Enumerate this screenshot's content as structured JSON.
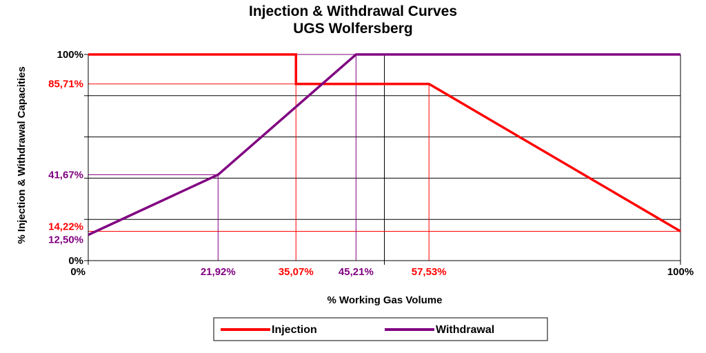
{
  "chart_data": {
    "type": "line",
    "title": "Injection & Withdrawal Curves",
    "subtitle": "UGS Wolfersberg",
    "xlabel": "% Working Gas Volume",
    "ylabel": "% Injection & Withdrawal Capacities",
    "xlim": [
      0,
      100
    ],
    "ylim": [
      0,
      100
    ],
    "grid": "horizontal",
    "legend_position": "bottom",
    "x_axis_labels": [
      {
        "value": 0,
        "label": "0%",
        "color": "#000000"
      },
      {
        "value": 21.92,
        "label": "21,92%",
        "color": "#800080"
      },
      {
        "value": 35.07,
        "label": "35,07%",
        "color": "#FF0000"
      },
      {
        "value": 45.21,
        "label": "45,21%",
        "color": "#800080"
      },
      {
        "value": 57.53,
        "label": "57,53%",
        "color": "#FF0000"
      },
      {
        "value": 100,
        "label": "100%",
        "color": "#000000"
      }
    ],
    "y_axis_labels": [
      {
        "value": 100,
        "label": "100%",
        "color": "#000000"
      },
      {
        "value": 85.71,
        "label": "85,71%",
        "color": "#FF0000"
      },
      {
        "value": 41.67,
        "label": "41,67%",
        "color": "#800080"
      },
      {
        "value": 14.22,
        "label": "14,22%",
        "color": "#FF0000"
      },
      {
        "value": 12.5,
        "label": "12,50%",
        "color": "#800080"
      },
      {
        "value": 0,
        "label": "0%",
        "color": "#000000"
      }
    ],
    "gridlines_y": [
      20,
      40,
      60,
      80,
      100
    ],
    "series": [
      {
        "name": "Injection",
        "color": "#FF0000",
        "x": [
          0,
          35.07,
          35.07,
          57.53,
          100
        ],
        "y": [
          100,
          100,
          85.71,
          85.71,
          14.22
        ]
      },
      {
        "name": "Withdrawal",
        "color": "#800080",
        "x": [
          0,
          21.92,
          45.21,
          100
        ],
        "y": [
          12.5,
          41.67,
          100,
          100
        ]
      }
    ],
    "reference_lines": [
      {
        "series": "Injection",
        "x": 35.07,
        "y": 100,
        "color": "#FF0000"
      },
      {
        "series": "Injection",
        "x": 57.53,
        "y": 85.71,
        "color": "#FF0000"
      },
      {
        "series": "Injection",
        "x": 100,
        "y": 14.22,
        "color": "#FF0000"
      },
      {
        "series": "Withdrawal",
        "x": 21.92,
        "y": 41.67,
        "color": "#800080"
      },
      {
        "series": "Withdrawal",
        "x": 45.21,
        "y": 100,
        "color": "#800080"
      }
    ]
  }
}
